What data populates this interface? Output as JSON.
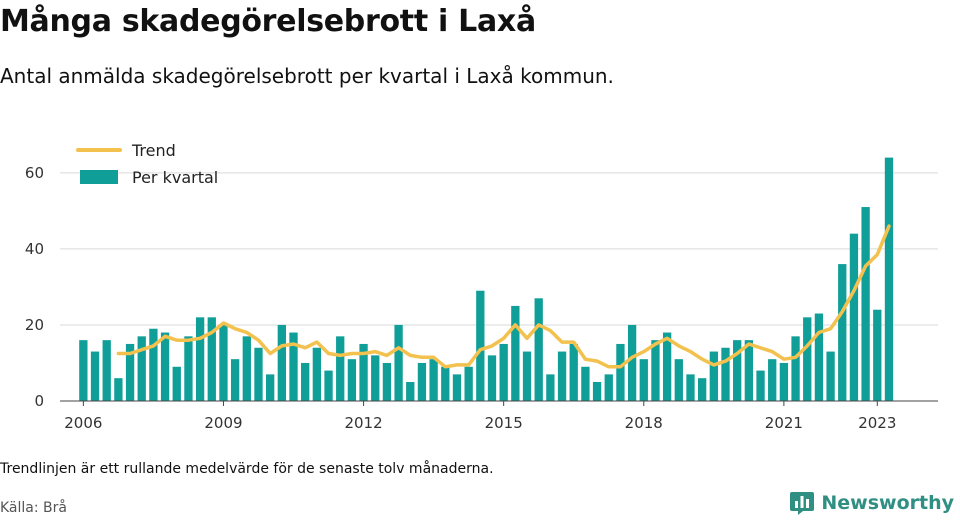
{
  "title": "Många skadegörelsebrott i Laxå",
  "subtitle": "Antal anmälda skadegörelsebrott per kvartal i Laxå kommun.",
  "note": "Trendlinjen är ett rullande medelvärde för de senaste tolv månaderna.",
  "source": "Källa: Brå",
  "brand": {
    "name": "Newsworthy",
    "icon": "bar-chart-logo-icon"
  },
  "colors": {
    "bar": "#0f9e98",
    "trend": "#f2c14e",
    "grid": "#d9d9d9",
    "brand": "#2f8f83"
  },
  "chart_data": {
    "type": "bar",
    "xlim": [
      2005.5,
      2024.3
    ],
    "ylim": [
      0,
      66
    ],
    "yticks": [
      0,
      20,
      40,
      60
    ],
    "ytick_labels": [
      "0",
      "20",
      "40",
      "60"
    ],
    "xticks": [
      2006,
      2009,
      2012,
      2015,
      2018,
      2021,
      2023
    ],
    "xtick_labels": [
      "2006",
      "2009",
      "2012",
      "2015",
      "2018",
      "2021",
      "2023"
    ],
    "grid": true,
    "legend_position": "top-left",
    "series": [
      {
        "name": "Trend",
        "type": "line",
        "x": [
          2006.75,
          2007.0,
          2007.25,
          2007.5,
          2007.75,
          2008.0,
          2008.25,
          2008.5,
          2008.75,
          2009.0,
          2009.25,
          2009.5,
          2009.75,
          2010.0,
          2010.25,
          2010.5,
          2010.75,
          2011.0,
          2011.25,
          2011.5,
          2011.75,
          2012.0,
          2012.25,
          2012.5,
          2012.75,
          2013.0,
          2013.25,
          2013.5,
          2013.75,
          2014.0,
          2014.25,
          2014.5,
          2014.75,
          2015.0,
          2015.25,
          2015.5,
          2015.75,
          2016.0,
          2016.25,
          2016.5,
          2016.75,
          2017.0,
          2017.25,
          2017.5,
          2017.75,
          2018.0,
          2018.25,
          2018.5,
          2018.75,
          2019.0,
          2019.25,
          2019.5,
          2019.75,
          2020.0,
          2020.25,
          2020.5,
          2020.75,
          2021.0,
          2021.25,
          2021.5,
          2021.75,
          2022.0,
          2022.25,
          2022.5,
          2022.75,
          2023.0,
          2023.25
        ],
        "values": [
          12.5,
          12.5,
          13.5,
          14.5,
          17.0,
          16.0,
          16.0,
          16.5,
          18.0,
          20.5,
          19.0,
          18.0,
          16.0,
          12.5,
          14.5,
          15.0,
          14.0,
          15.5,
          12.5,
          12.0,
          12.5,
          12.5,
          13.0,
          12.0,
          14.0,
          12.0,
          11.5,
          11.5,
          9.0,
          9.5,
          9.5,
          13.5,
          14.5,
          16.5,
          20.0,
          16.5,
          20.0,
          18.5,
          15.5,
          15.5,
          11.0,
          10.5,
          9.0,
          9.0,
          11.5,
          13.0,
          15.0,
          16.5,
          14.5,
          13.0,
          11.0,
          9.5,
          10.5,
          12.5,
          15.0,
          14.0,
          13.0,
          11.0,
          11.5,
          14.5,
          18.0,
          19.0,
          23.5,
          29.0,
          35.5,
          38.5,
          46.0
        ]
      },
      {
        "name": "Per kvartal",
        "type": "bar",
        "x": [
          2006.0,
          2006.25,
          2006.5,
          2006.75,
          2007.0,
          2007.25,
          2007.5,
          2007.75,
          2008.0,
          2008.25,
          2008.5,
          2008.75,
          2009.0,
          2009.25,
          2009.5,
          2009.75,
          2010.0,
          2010.25,
          2010.5,
          2010.75,
          2011.0,
          2011.25,
          2011.5,
          2011.75,
          2012.0,
          2012.25,
          2012.5,
          2012.75,
          2013.0,
          2013.25,
          2013.5,
          2013.75,
          2014.0,
          2014.25,
          2014.5,
          2014.75,
          2015.0,
          2015.25,
          2015.5,
          2015.75,
          2016.0,
          2016.25,
          2016.5,
          2016.75,
          2017.0,
          2017.25,
          2017.5,
          2017.75,
          2018.0,
          2018.25,
          2018.5,
          2018.75,
          2019.0,
          2019.25,
          2019.5,
          2019.75,
          2020.0,
          2020.25,
          2020.5,
          2020.75,
          2021.0,
          2021.25,
          2021.5,
          2021.75,
          2022.0,
          2022.25,
          2022.5,
          2022.75,
          2023.0,
          2023.25
        ],
        "values": [
          16,
          13,
          16,
          6,
          15,
          17,
          19,
          18,
          9,
          17,
          22,
          22,
          20,
          11,
          17,
          14,
          7,
          20,
          18,
          10,
          14,
          8,
          17,
          11,
          15,
          12,
          10,
          20,
          5,
          10,
          11,
          9,
          7,
          9,
          29,
          12,
          15,
          25,
          13,
          27,
          7,
          13,
          15,
          9,
          5,
          7,
          15,
          20,
          11,
          16,
          18,
          11,
          7,
          6,
          13,
          14,
          16,
          16,
          8,
          11,
          10,
          17,
          22,
          23,
          13,
          36,
          44,
          51,
          24,
          64
        ]
      }
    ]
  }
}
